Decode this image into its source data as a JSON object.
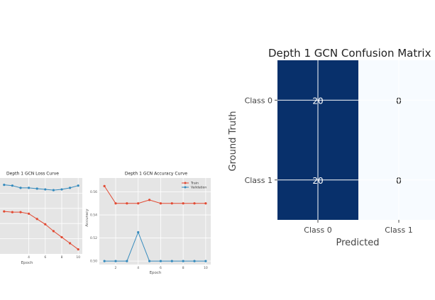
{
  "chart_data": [
    {
      "type": "line",
      "title": "Depth 1 GCN Loss Curve",
      "xlabel": "Epoch",
      "ylabel": "",
      "x": [
        1,
        2,
        3,
        4,
        5,
        6,
        7,
        8,
        9,
        10
      ],
      "xlim": [
        0.5,
        10.5
      ],
      "ylim": [
        0,
        1
      ],
      "xticks": [
        4,
        6,
        8,
        10
      ],
      "grid": true,
      "series": [
        {
          "name": "",
          "color": "#e24a33",
          "values": [
            0.56,
            0.55,
            0.55,
            0.53,
            0.46,
            0.39,
            0.3,
            0.22,
            0.14,
            0.06
          ]
        },
        {
          "name": "",
          "color": "#348abd",
          "values": [
            0.91,
            0.9,
            0.87,
            0.87,
            0.86,
            0.85,
            0.84,
            0.85,
            0.87,
            0.9
          ]
        }
      ]
    },
    {
      "type": "line",
      "title": "Depth 1 GCN Accuracy Curve",
      "xlabel": "Epoch",
      "ylabel": "Accuracy",
      "x": [
        1,
        2,
        3,
        4,
        5,
        6,
        7,
        8,
        9,
        10
      ],
      "xlim": [
        0.55,
        10.45
      ],
      "ylim": [
        0.497,
        0.572
      ],
      "xticks": [
        2,
        4,
        6,
        8,
        10
      ],
      "yticks": [
        0.5,
        0.52,
        0.54,
        0.56
      ],
      "grid": true,
      "legend": "top-right",
      "series": [
        {
          "name": "Train",
          "color": "#e24a33",
          "values": [
            0.565,
            0.55,
            0.55,
            0.55,
            0.553,
            0.55,
            0.55,
            0.55,
            0.55,
            0.55
          ]
        },
        {
          "name": "Validation",
          "color": "#348abd",
          "values": [
            0.5,
            0.5,
            0.5,
            0.525,
            0.5,
            0.5,
            0.5,
            0.5,
            0.5,
            0.5
          ]
        }
      ]
    },
    {
      "type": "heatmap",
      "title": "Depth 1 GCN Confusion Matrix",
      "xlabel": "Predicted",
      "ylabel": "Ground Truth",
      "x_categories": [
        "Class 0",
        "Class 1"
      ],
      "y_categories": [
        "Class 0",
        "Class 1"
      ],
      "values": [
        [
          20,
          0
        ],
        [
          20,
          0
        ]
      ],
      "colors": {
        "high": "#08306b",
        "low": "#f7fbff",
        "text_on_high": "#ffffff",
        "text_on_low": "#000000"
      }
    }
  ]
}
